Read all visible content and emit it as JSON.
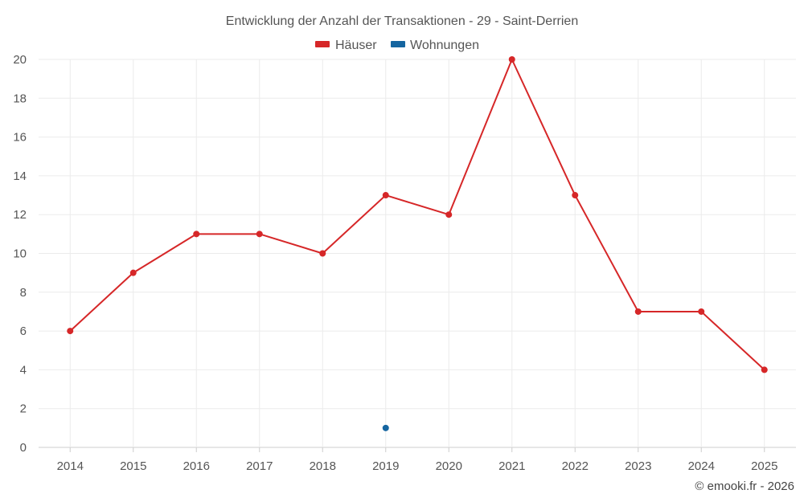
{
  "chart_data": {
    "type": "line",
    "title": "Entwicklung der Anzahl der Transaktionen - 29 - Saint-Derrien",
    "categories": [
      "2014",
      "2015",
      "2016",
      "2017",
      "2018",
      "2019",
      "2020",
      "2021",
      "2022",
      "2023",
      "2024",
      "2025"
    ],
    "ylim": [
      0,
      20
    ],
    "yticks": [
      0,
      2,
      4,
      6,
      8,
      10,
      12,
      14,
      16,
      18,
      20
    ],
    "grid": true,
    "legend_position": "top-center",
    "series": [
      {
        "name": "Häuser",
        "color": "#d62728",
        "values": [
          6,
          9,
          11,
          11,
          10,
          13,
          12,
          20,
          13,
          7,
          7,
          4
        ]
      },
      {
        "name": "Wohnungen",
        "color": "#1565a0",
        "values": [
          null,
          null,
          null,
          null,
          null,
          1,
          null,
          null,
          null,
          null,
          null,
          null
        ]
      }
    ],
    "credit": "© emooki.fr - 2026"
  }
}
